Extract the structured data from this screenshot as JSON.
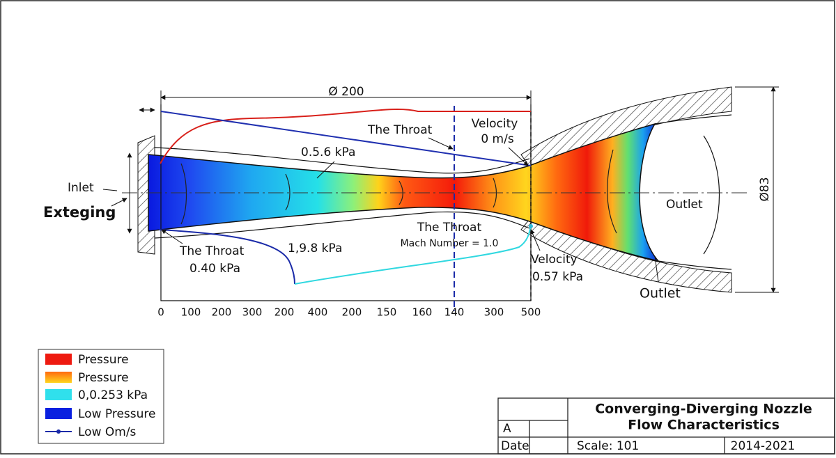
{
  "dimensions": {
    "length": "Ø 200",
    "diameter": "Ø83"
  },
  "annotations": {
    "inlet": "Inlet",
    "exteging": "Exteging",
    "throat_top": "The Throat",
    "velocity_top": "Velocity",
    "velocity_top_value": "0 m/s",
    "pressure_top": "0.5.6 kPa",
    "throat_mid": "The Throat",
    "mach": "Mach Number = 1.0",
    "throat_left": "The Throat",
    "throat_left_value": "0.40 kPa",
    "pressure_low": "1,9.8 kPa",
    "velocity_bottom": "Velocity",
    "velocity_bottom_value": "0.57 kPa",
    "outlet_inner": "Outlet",
    "outlet_outer": "Outlet"
  },
  "axis_labels": [
    "0",
    "100",
    "200",
    "300",
    "200",
    "400",
    "200",
    "150",
    "160",
    "140",
    "300",
    "500"
  ],
  "legend": [
    "Pressure",
    "Pressure",
    "0,0.253 kPa",
    "Low Pressure",
    "Low Om/s"
  ],
  "title_block": {
    "title_line1": "Converging-Diverging Nozzle",
    "title_line2": "Flow Characteristics",
    "revision": "A",
    "date_label": "Date",
    "scale": "Scale: 101",
    "years": "2014-2021"
  }
}
